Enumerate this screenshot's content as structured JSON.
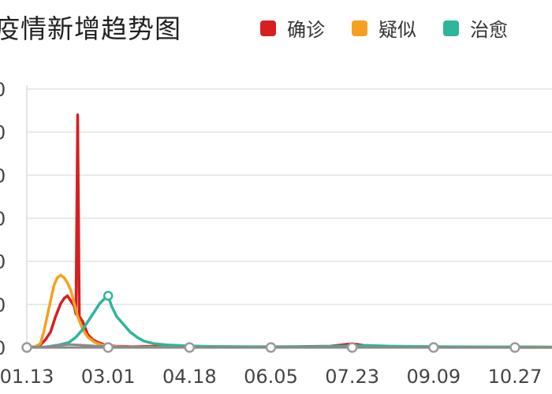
{
  "chart_data": {
    "type": "line",
    "title": "疫情新增趋势图",
    "x_ticks": [
      "01.13",
      "03.01",
      "04.18",
      "06.05",
      "07.23",
      "09.09",
      "10.27"
    ],
    "y_tick_label": "0",
    "grid": true,
    "legend_position": "top-right",
    "series": [
      {
        "name": "确诊",
        "color": "#d71f1f",
        "points": [
          [
            "01.13",
            0
          ],
          [
            "01.18",
            0.3
          ],
          [
            "01.21",
            1
          ],
          [
            "01.24",
            3
          ],
          [
            "01.27",
            6
          ],
          [
            "01.30",
            12
          ],
          [
            "02.02",
            17
          ],
          [
            "02.04",
            19
          ],
          [
            "02.06",
            20
          ],
          [
            "02.08",
            18
          ],
          [
            "02.10",
            16
          ],
          [
            "02.11",
            13
          ],
          [
            "02.12",
            90
          ],
          [
            "02.13",
            12
          ],
          [
            "02.15",
            10
          ],
          [
            "02.18",
            5
          ],
          [
            "02.21",
            3
          ],
          [
            "02.24",
            2
          ],
          [
            "02.28",
            1
          ],
          [
            "03.05",
            0.5
          ],
          [
            "03.15",
            0.3
          ],
          [
            "04.01",
            0.5
          ],
          [
            "04.20",
            0.3
          ],
          [
            "05.20",
            0.2
          ],
          [
            "06.20",
            0.3
          ],
          [
            "07.10",
            0.5
          ],
          [
            "07.23",
            1.5
          ],
          [
            "07.30",
            0.8
          ],
          [
            "08.15",
            0.4
          ],
          [
            "09.09",
            0.2
          ],
          [
            "10.27",
            0.2
          ],
          [
            "11.25",
            0.1
          ]
        ]
      },
      {
        "name": "疑似",
        "color": "#f5a11f",
        "points": [
          [
            "01.13",
            0
          ],
          [
            "01.18",
            0.4
          ],
          [
            "01.21",
            1.5
          ],
          [
            "01.23",
            6
          ],
          [
            "01.25",
            12
          ],
          [
            "01.27",
            18
          ],
          [
            "01.29",
            24
          ],
          [
            "01.31",
            27
          ],
          [
            "02.02",
            28
          ],
          [
            "02.04",
            27
          ],
          [
            "02.06",
            25
          ],
          [
            "02.08",
            22
          ],
          [
            "02.10",
            17
          ],
          [
            "02.12",
            12
          ],
          [
            "02.15",
            7
          ],
          [
            "02.18",
            4
          ],
          [
            "02.22",
            2
          ],
          [
            "02.26",
            1
          ],
          [
            "03.01",
            0.5
          ],
          [
            "03.10",
            0.2
          ],
          [
            "04.01",
            0.1
          ],
          [
            "06.01",
            0.1
          ],
          [
            "09.01",
            0.1
          ],
          [
            "11.25",
            0
          ]
        ]
      },
      {
        "name": "治愈",
        "color": "#2eb59a",
        "points": [
          [
            "01.13",
            0
          ],
          [
            "01.24",
            0.2
          ],
          [
            "02.01",
            1
          ],
          [
            "02.07",
            2
          ],
          [
            "02.11",
            4
          ],
          [
            "02.15",
            7
          ],
          [
            "02.19",
            11
          ],
          [
            "02.22",
            14
          ],
          [
            "02.25",
            17
          ],
          [
            "02.28",
            19
          ],
          [
            "03.01",
            20
          ],
          [
            "03.03",
            16
          ],
          [
            "03.06",
            12
          ],
          [
            "03.10",
            9
          ],
          [
            "03.14",
            6
          ],
          [
            "03.18",
            4
          ],
          [
            "03.22",
            2.5
          ],
          [
            "03.28",
            1.5
          ],
          [
            "04.05",
            1
          ],
          [
            "04.18",
            0.6
          ],
          [
            "05.01",
            0.4
          ],
          [
            "05.20",
            0.3
          ],
          [
            "06.10",
            0.2
          ],
          [
            "07.01",
            0.3
          ],
          [
            "07.23",
            0.6
          ],
          [
            "08.01",
            0.8
          ],
          [
            "08.15",
            0.5
          ],
          [
            "09.09",
            0.3
          ],
          [
            "10.10",
            0.2
          ],
          [
            "10.27",
            0.2
          ],
          [
            "11.25",
            0.1
          ]
        ]
      },
      {
        "name": "",
        "color": "#8a8a8a",
        "points": [
          [
            "01.13",
            0
          ],
          [
            "01.24",
            0.2
          ],
          [
            "02.01",
            0.8
          ],
          [
            "02.07",
            1.2
          ],
          [
            "02.15",
            0.9
          ],
          [
            "02.22",
            0.6
          ],
          [
            "03.01",
            0.3
          ],
          [
            "03.15",
            0.15
          ],
          [
            "04.01",
            0.1
          ],
          [
            "06.01",
            0
          ],
          [
            "11.25",
            0
          ]
        ]
      }
    ]
  }
}
